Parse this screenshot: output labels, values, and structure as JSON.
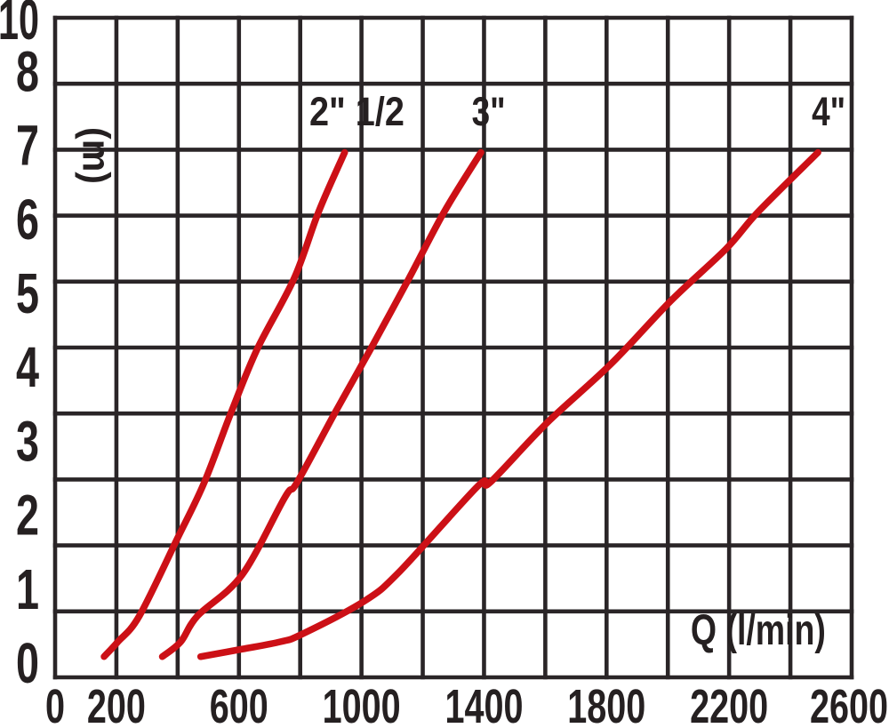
{
  "chart_data": {
    "type": "line",
    "title": "",
    "xlabel": "Q (l/min)",
    "ylabel": "(m)",
    "xlim": [
      0,
      2600
    ],
    "ylim": [
      0,
      10
    ],
    "grid": true,
    "x_gridline_step": 200,
    "y_gridline_step": 1,
    "x_tick_labels": [
      0,
      200,
      600,
      1000,
      1400,
      1800,
      2200,
      2600
    ],
    "y_tick_labels": [
      0,
      1,
      2,
      3,
      4,
      5,
      6,
      7,
      8,
      10
    ],
    "ink_color": "#252021",
    "grid_color": "#2a2527",
    "series_color": "#cc1016",
    "series": [
      {
        "name": "2\" 1/2",
        "points": [
          [
            160,
            0.1
          ],
          [
            205,
            0.3
          ],
          [
            275,
            0.65
          ],
          [
            400,
            1.7
          ],
          [
            487,
            2.45
          ],
          [
            575,
            3.4
          ],
          [
            660,
            4.25
          ],
          [
            780,
            5.2
          ],
          [
            860,
            6.1
          ],
          [
            945,
            6.9
          ]
        ]
      },
      {
        "name": "3\"",
        "points": [
          [
            350,
            0.1
          ],
          [
            410,
            0.3
          ],
          [
            465,
            0.65
          ],
          [
            610,
            1.2
          ],
          [
            750,
            2.25
          ],
          [
            790,
            2.45
          ],
          [
            915,
            3.4
          ],
          [
            1030,
            4.25
          ],
          [
            1155,
            5.2
          ],
          [
            1270,
            6.1
          ],
          [
            1390,
            6.9
          ]
        ]
      },
      {
        "name": "4\"",
        "points": [
          [
            475,
            0.1
          ],
          [
            610,
            0.2
          ],
          [
            735,
            0.3
          ],
          [
            805,
            0.4
          ],
          [
            1010,
            0.85
          ],
          [
            1125,
            1.25
          ],
          [
            1380,
            2.4
          ],
          [
            1420,
            2.45
          ],
          [
            1605,
            3.25
          ],
          [
            1815,
            4.05
          ],
          [
            2010,
            4.9
          ],
          [
            2190,
            5.6
          ],
          [
            2295,
            6.1
          ],
          [
            2490,
            6.9
          ]
        ]
      }
    ],
    "annotations": [
      {
        "label": "2\" 1/2",
        "q": 985,
        "h": 7.45
      },
      {
        "label": "3\"",
        "q": 1415,
        "h": 7.45
      },
      {
        "label": "4\"",
        "q": 2525,
        "h": 7.45
      }
    ],
    "xlabel_pos": {
      "q": 2295,
      "h": 0.45
    },
    "legend_position": "none"
  }
}
